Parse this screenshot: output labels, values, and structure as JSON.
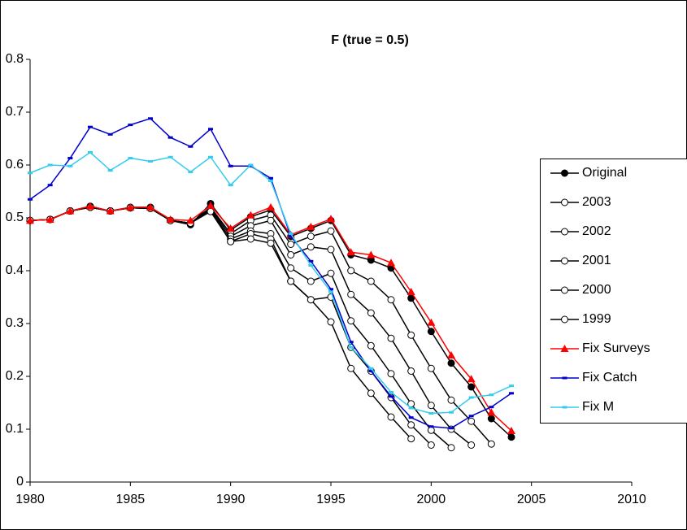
{
  "chart_data": {
    "type": "line",
    "title": "F (true = 0.5)",
    "x": [
      1980,
      1981,
      1982,
      1983,
      1984,
      1985,
      1986,
      1987,
      1988,
      1989,
      1990,
      1991,
      1992,
      1993,
      1994,
      1995,
      1996,
      1997,
      1998,
      1999,
      2000,
      2001,
      2002,
      2003,
      2004
    ],
    "xlim": [
      1980,
      2010
    ],
    "xticks": [
      1980,
      1985,
      1990,
      1995,
      2000,
      2005,
      2010
    ],
    "ylim": [
      0,
      0.8
    ],
    "yticks": [
      0,
      0.1,
      0.2,
      0.3,
      0.4,
      0.5,
      0.6,
      0.7,
      0.8
    ],
    "legend": "right",
    "series": [
      {
        "name": "Original",
        "color": "#000000",
        "marker": "circle-filled",
        "values": [
          0.495,
          0.497,
          0.513,
          0.522,
          0.513,
          0.52,
          0.52,
          0.495,
          0.487,
          0.527,
          0.477,
          0.502,
          0.515,
          0.465,
          0.48,
          0.495,
          0.43,
          0.42,
          0.405,
          0.348,
          0.285,
          0.225,
          0.18,
          0.12,
          0.085
        ]
      },
      {
        "name": "2003",
        "color": "#000000",
        "marker": "circle-open",
        "values": [
          0.495,
          0.497,
          0.513,
          0.52,
          0.513,
          0.519,
          0.518,
          0.495,
          0.49,
          0.52,
          0.47,
          0.495,
          0.505,
          0.45,
          0.465,
          0.475,
          0.4,
          0.38,
          0.345,
          0.278,
          0.215,
          0.155,
          0.115,
          0.072,
          null
        ]
      },
      {
        "name": "2002",
        "color": "#000000",
        "marker": "circle-open",
        "values": [
          0.495,
          0.497,
          0.513,
          0.52,
          0.513,
          0.519,
          0.518,
          0.495,
          0.49,
          0.518,
          0.465,
          0.485,
          0.495,
          0.43,
          0.445,
          0.44,
          0.355,
          0.32,
          0.272,
          0.21,
          0.145,
          0.1,
          0.07,
          null,
          null
        ]
      },
      {
        "name": "2001",
        "color": "#000000",
        "marker": "circle-open",
        "values": [
          0.495,
          0.497,
          0.513,
          0.52,
          0.513,
          0.519,
          0.518,
          0.495,
          0.49,
          0.515,
          0.46,
          0.475,
          0.47,
          0.405,
          0.38,
          0.395,
          0.305,
          0.258,
          0.205,
          0.148,
          0.098,
          0.065,
          null,
          null,
          null
        ]
      },
      {
        "name": "2000",
        "color": "#000000",
        "marker": "circle-open",
        "values": [
          0.495,
          0.497,
          0.513,
          0.52,
          0.513,
          0.519,
          0.518,
          0.495,
          0.49,
          0.513,
          0.455,
          0.47,
          0.46,
          0.38,
          0.345,
          0.35,
          0.255,
          0.21,
          0.16,
          0.108,
          0.07,
          null,
          null,
          null,
          null
        ]
      },
      {
        "name": "1999",
        "color": "#000000",
        "marker": "circle-open",
        "values": [
          0.495,
          0.497,
          0.513,
          0.52,
          0.513,
          0.519,
          0.518,
          0.495,
          0.49,
          0.512,
          0.455,
          0.46,
          0.452,
          0.38,
          0.345,
          0.303,
          0.215,
          0.168,
          0.123,
          0.082,
          null,
          null,
          null,
          null,
          null
        ]
      },
      {
        "name": "Fix Surveys",
        "color": "#ff0000",
        "marker": "triangle",
        "values": [
          0.495,
          0.497,
          0.513,
          0.522,
          0.513,
          0.52,
          0.52,
          0.497,
          0.495,
          0.523,
          0.48,
          0.505,
          0.52,
          0.468,
          0.483,
          0.498,
          0.435,
          0.43,
          0.415,
          0.36,
          0.302,
          0.24,
          0.195,
          0.132,
          0.097
        ]
      },
      {
        "name": "Fix Catch",
        "color": "#0000cc",
        "marker": "dash",
        "values": [
          0.535,
          0.562,
          0.613,
          0.672,
          0.658,
          0.676,
          0.688,
          0.652,
          0.635,
          0.668,
          0.598,
          0.598,
          0.575,
          0.465,
          0.418,
          0.365,
          0.265,
          0.21,
          0.162,
          0.122,
          0.105,
          0.102,
          0.125,
          0.142,
          0.168
        ]
      },
      {
        "name": "Fix M",
        "color": "#33ccee",
        "marker": "dash",
        "values": [
          0.585,
          0.6,
          0.598,
          0.624,
          0.59,
          0.613,
          0.607,
          0.615,
          0.587,
          0.615,
          0.562,
          0.6,
          0.57,
          0.47,
          0.41,
          0.36,
          0.255,
          0.215,
          0.17,
          0.14,
          0.13,
          0.132,
          0.16,
          0.165,
          0.182
        ]
      }
    ]
  }
}
